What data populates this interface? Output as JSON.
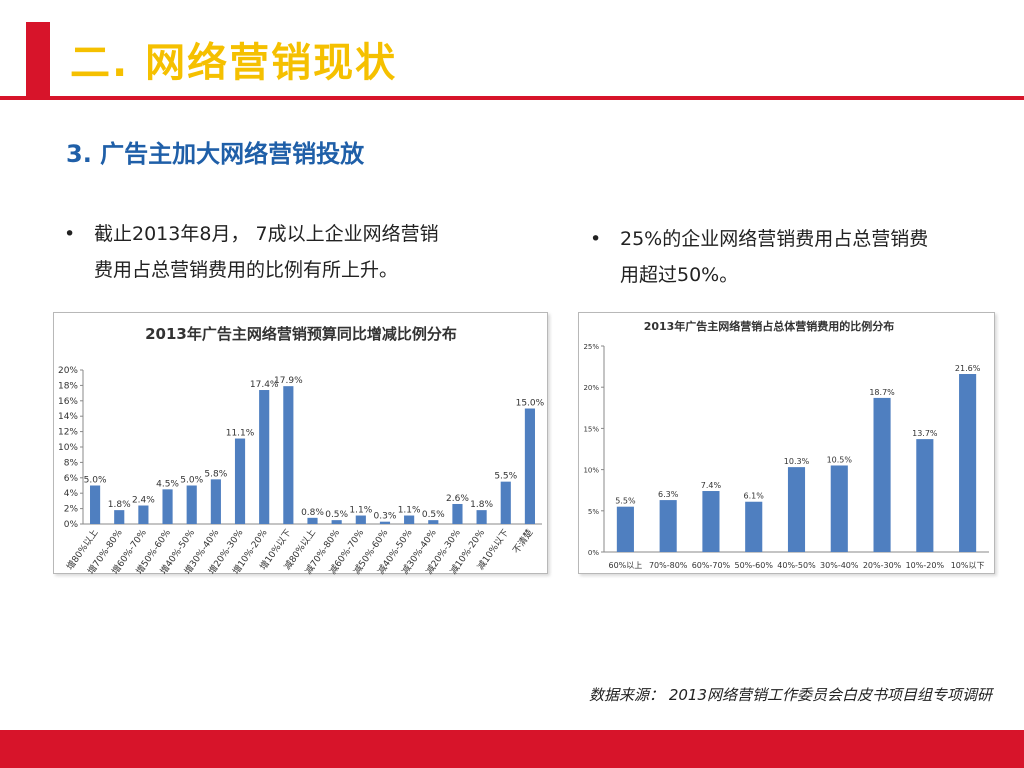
{
  "header": {
    "title": "二. 网络营销现状"
  },
  "section": {
    "title": "3. 广告主加大网络营销投放"
  },
  "bullets": {
    "left_line1": "截止2013年8月， 7成以上企业网络营销",
    "left_line2": "费用占总营销费用的比例有所上升。",
    "right_line1": "25%的企业网络营销费用占总营销费",
    "right_line2": "用超过50%。"
  },
  "footer": {
    "source": "数据来源： 2013网络营销工作委员会白皮书项目组专项调研"
  },
  "colors": {
    "bar": "#4f7fc0",
    "accent": "#d7142a",
    "title": "#f5c000",
    "subtitle": "#1f5fa8"
  },
  "chart_data": [
    {
      "type": "bar",
      "title": "2013年广告主网络营销预算同比增减比例分布",
      "categories": [
        "增80%以上",
        "增70%-80%",
        "增60%-70%",
        "增50%-60%",
        "增40%-50%",
        "增30%-40%",
        "增20%-30%",
        "增10%-20%",
        "增10%以下",
        "减80%以上",
        "减70%-80%",
        "减60%-70%",
        "减50%-60%",
        "减40%-50%",
        "减30%-40%",
        "减20%-30%",
        "减10%-20%",
        "减10%以下",
        "不清楚"
      ],
      "values": [
        5.0,
        1.8,
        2.4,
        4.5,
        5.0,
        5.8,
        11.1,
        17.4,
        17.9,
        0.8,
        0.5,
        1.1,
        0.3,
        1.1,
        0.5,
        2.6,
        1.8,
        5.5,
        15.0
      ],
      "labels": [
        "5.0%",
        "1.8%",
        "2.4%",
        "4.5%",
        "5.0%",
        "5.8%",
        "11.1%",
        "17.4%",
        "17.9%",
        "0.8%",
        "0.5%",
        "1.1%",
        "0.3%",
        "1.1%",
        "0.5%",
        "2.6%",
        "1.8%",
        "5.5%",
        "15.0%"
      ],
      "yticks": [
        "0%",
        "2%",
        "4%",
        "6%",
        "8%",
        "10%",
        "12%",
        "14%",
        "16%",
        "18%",
        "20%"
      ],
      "ylim": [
        0,
        20
      ],
      "grid": false
    },
    {
      "type": "bar",
      "title": "2013年广告主网络营销占总体营销费用的比例分布",
      "categories": [
        "60%以上",
        "70%-80%",
        "60%-70%",
        "50%-60%",
        "40%-50%",
        "30%-40%",
        "20%-30%",
        "10%-20%",
        "10%以下"
      ],
      "values": [
        5.5,
        6.3,
        7.4,
        6.1,
        10.3,
        10.5,
        18.7,
        13.7,
        21.6
      ],
      "labels": [
        "5.5%",
        "6.3%",
        "7.4%",
        "6.1%",
        "10.3%",
        "10.5%",
        "18.7%",
        "13.7%",
        "21.6%"
      ],
      "yticks": [
        "0%",
        "5%",
        "10%",
        "15%",
        "20%",
        "25%"
      ],
      "ylim": [
        0,
        25
      ],
      "grid": false
    }
  ]
}
